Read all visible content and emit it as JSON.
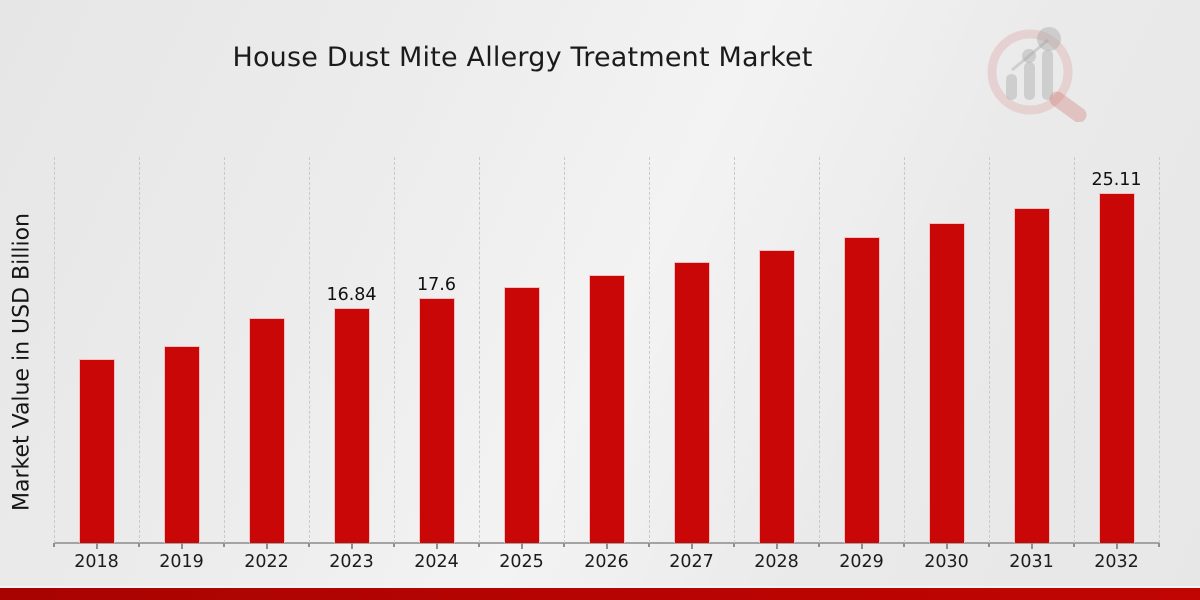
{
  "title": "House Dust Mite Allergy Treatment Market",
  "y_axis_label": "Market Value in USD Billion",
  "logo_name": "market-research-future-watermark",
  "colors": {
    "bar": "#c90706",
    "strip_dark": "#a80301",
    "strip_light": "#c00503",
    "grid": "#c9c9c9",
    "axis": "#a3a3a3",
    "text": "#1b1b1b"
  },
  "chart_data": {
    "type": "bar",
    "title": "House Dust Mite Allergy Treatment Market",
    "xlabel": "",
    "ylabel": "Market Value in USD Billion",
    "categories": [
      "2018",
      "2019",
      "2022",
      "2023",
      "2024",
      "2025",
      "2026",
      "2027",
      "2028",
      "2029",
      "2030",
      "2031",
      "2032"
    ],
    "values": [
      13.19,
      14.12,
      16.12,
      16.84,
      17.6,
      18.35,
      19.21,
      20.14,
      21.0,
      21.93,
      22.93,
      24.01,
      25.11
    ],
    "data_labels": {
      "2023": "16.84",
      "2024": "17.6",
      "2032": "25.11"
    },
    "ylim": [
      0,
      27.7
    ],
    "grid": "vertical-dashed",
    "legend": "none",
    "bar_color": "#c90706"
  }
}
